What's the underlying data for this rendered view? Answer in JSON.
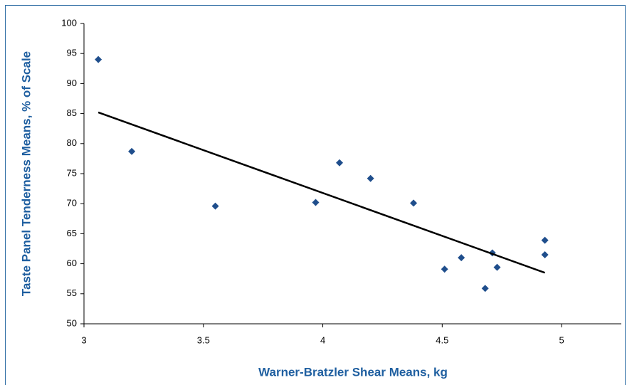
{
  "chart_data": {
    "type": "scatter",
    "xlabel": "Warner-Bratzler Shear Means, kg",
    "ylabel": "Taste Panel Tenderness Means, % of Scale",
    "series": [
      {
        "color": "#1f4e8c",
        "x": [
          3.06,
          3.2,
          3.55,
          3.97,
          4.07,
          4.2,
          4.38,
          4.51,
          4.58,
          4.68,
          4.71,
          4.73,
          4.93,
          4.93
        ],
        "values": [
          94.0,
          78.7,
          69.6,
          70.2,
          76.8,
          74.2,
          70.1,
          59.1,
          61.0,
          55.9,
          61.8,
          59.4,
          63.9,
          61.5
        ]
      }
    ],
    "trendline": {
      "color": "#000000",
      "x": [
        3.06,
        4.93
      ],
      "values": [
        85.2,
        58.5
      ]
    },
    "xlim": [
      3,
      5.25
    ],
    "xticks": [
      3,
      3.5,
      4,
      4.5,
      5
    ],
    "ylim": [
      50,
      100
    ],
    "yticks": [
      50,
      55,
      60,
      65,
      70,
      75,
      80,
      85,
      90,
      95,
      100
    ]
  }
}
